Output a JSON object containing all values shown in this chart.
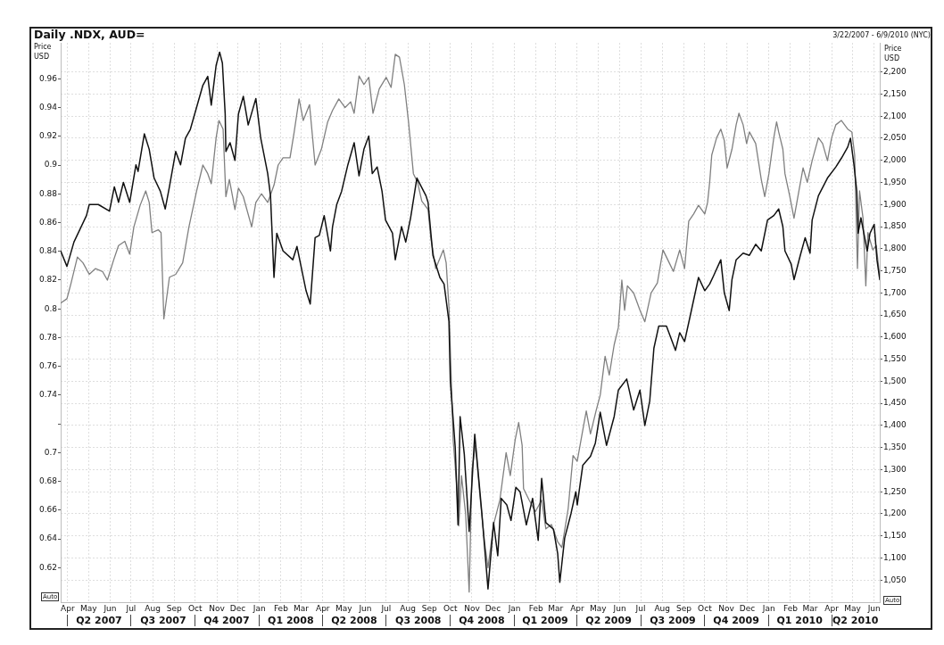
{
  "chart_data": {
    "type": "line",
    "title": "Daily .NDX, AUD=",
    "subtitle": "3/22/2007 - 6/9/2010 (NYC)",
    "ylabel": "Price USD",
    "y2label": "Price USD",
    "annotations": [
      "Auto",
      "Auto"
    ],
    "xlim": [
      "2007-03-22",
      "2010-06-09"
    ],
    "xticks": [
      {
        "value": "2007-04",
        "label": "Apr"
      },
      {
        "value": "2007-05",
        "label": "May"
      },
      {
        "value": "2007-06",
        "label": "Jun"
      },
      {
        "value": "2007-07",
        "label": "Jul"
      },
      {
        "value": "2007-08",
        "label": "Aug"
      },
      {
        "value": "2007-09",
        "label": "Sep"
      },
      {
        "value": "2007-10",
        "label": "Oct"
      },
      {
        "value": "2007-11",
        "label": "Nov"
      },
      {
        "value": "2007-12",
        "label": "Dec"
      },
      {
        "value": "2008-01",
        "label": "Jan"
      },
      {
        "value": "2008-02",
        "label": "Feb"
      },
      {
        "value": "2008-03",
        "label": "Mar"
      },
      {
        "value": "2008-04",
        "label": "Apr"
      },
      {
        "value": "2008-05",
        "label": "May"
      },
      {
        "value": "2008-06",
        "label": "Jun"
      },
      {
        "value": "2008-07",
        "label": "Jul"
      },
      {
        "value": "2008-08",
        "label": "Aug"
      },
      {
        "value": "2008-09",
        "label": "Sep"
      },
      {
        "value": "2008-10",
        "label": "Oct"
      },
      {
        "value": "2008-11",
        "label": "Nov"
      },
      {
        "value": "2008-12",
        "label": "Dec"
      },
      {
        "value": "2009-01",
        "label": "Jan"
      },
      {
        "value": "2009-02",
        "label": "Feb"
      },
      {
        "value": "2009-03",
        "label": "Mar"
      },
      {
        "value": "2009-04",
        "label": "Apr"
      },
      {
        "value": "2009-05",
        "label": "May"
      },
      {
        "value": "2009-06",
        "label": "Jun"
      },
      {
        "value": "2009-07",
        "label": "Jul"
      },
      {
        "value": "2009-08",
        "label": "Aug"
      },
      {
        "value": "2009-09",
        "label": "Sep"
      },
      {
        "value": "2009-10",
        "label": "Oct"
      },
      {
        "value": "2009-11",
        "label": "Nov"
      },
      {
        "value": "2009-12",
        "label": "Dec"
      },
      {
        "value": "2010-01",
        "label": "Jan"
      },
      {
        "value": "2010-02",
        "label": "Feb"
      },
      {
        "value": "2010-03",
        "label": "Mar"
      },
      {
        "value": "2010-04",
        "label": "Apr"
      },
      {
        "value": "2010-05",
        "label": "May"
      },
      {
        "value": "2010-06",
        "label": "Jun"
      }
    ],
    "x2lim": [
      "2007-03-22",
      "2010-06-09"
    ],
    "x2ticks": [
      {
        "value": "2007-04",
        "label": null
      },
      {
        "value": "2007-05-16",
        "label": "Q2 2007"
      },
      {
        "value": "2007-07",
        "label": null
      },
      {
        "value": "2007-08-16",
        "label": "Q3 2007"
      },
      {
        "value": "2007-10",
        "label": null
      },
      {
        "value": "2007-11-15",
        "label": "Q4 2007"
      },
      {
        "value": "2008-01",
        "label": null
      },
      {
        "value": "2008-02-15",
        "label": "Q1 2008"
      },
      {
        "value": "2008-04",
        "label": null
      },
      {
        "value": "2008-05-16",
        "label": "Q2 2008"
      },
      {
        "value": "2008-07",
        "label": null
      },
      {
        "value": "2008-08-16",
        "label": "Q3 2008"
      },
      {
        "value": "2008-10",
        "label": null
      },
      {
        "value": "2008-11-15",
        "label": "Q4 2008"
      },
      {
        "value": "2009-01",
        "label": null
      },
      {
        "value": "2009-02-14",
        "label": "Q1 2009"
      },
      {
        "value": "2009-04",
        "label": null
      },
      {
        "value": "2009-05-16",
        "label": "Q2 2009"
      },
      {
        "value": "2009-07",
        "label": null
      },
      {
        "value": "2009-08-16",
        "label": "Q3 2009"
      },
      {
        "value": "2009-10",
        "label": null
      },
      {
        "value": "2009-11-15",
        "label": "Q4 2009"
      },
      {
        "value": "2010-01",
        "label": null
      },
      {
        "value": "2010-02-14",
        "label": "Q1 2010"
      },
      {
        "value": "2010-04",
        "label": null
      },
      {
        "value": "2010-05-05",
        "label": "Q2 2010"
      }
    ],
    "ylim": [
      0.596,
      0.985
    ],
    "yticks": [
      0.62,
      0.64,
      0.66,
      0.68,
      0.7,
      {
        "value": 0.72,
        "label": null
      },
      0.74,
      0.76,
      0.78,
      0.8,
      0.82,
      0.84,
      0.86,
      0.88,
      0.9,
      0.92,
      0.94,
      0.96
    ],
    "y2lim": [
      1000,
      2266
    ],
    "y2ticks": [
      {
        "value": 1050,
        "label": "1,050"
      },
      {
        "value": 1100,
        "label": "1,100"
      },
      {
        "value": 1150,
        "label": "1,150"
      },
      {
        "value": 1200,
        "label": "1,200"
      },
      {
        "value": 1250,
        "label": "1,250"
      },
      {
        "value": 1300,
        "label": "1,300"
      },
      {
        "value": 1350,
        "label": "1,350"
      },
      {
        "value": 1400,
        "label": "1,400"
      },
      {
        "value": 1450,
        "label": "1,450"
      },
      {
        "value": 1500,
        "label": "1,500"
      },
      {
        "value": 1550,
        "label": "1,550"
      },
      {
        "value": 1600,
        "label": "1,600"
      },
      {
        "value": 1650,
        "label": "1,650"
      },
      {
        "value": 1700,
        "label": "1,700"
      },
      {
        "value": 1750,
        "label": "1,750"
      },
      {
        "value": 1800,
        "label": "1,800"
      },
      {
        "value": 1850,
        "label": "1,850"
      },
      {
        "value": 1900,
        "label": "1,900"
      },
      {
        "value": 1950,
        "label": "1,950"
      },
      {
        "value": 2000,
        "label": "2,000"
      },
      {
        "value": 2050,
        "label": "2,050"
      },
      {
        "value": 2100,
        "label": "2,100"
      },
      {
        "value": 2150,
        "label": "2,150"
      },
      {
        "value": 2200,
        "label": "2,200"
      }
    ],
    "grid": true,
    "marker": "none",
    "line_style": "solid",
    "series": [
      {
        "color": "#111111",
        "axis": "y2",
        "x": [
          "2007-03-22",
          "2007-03-31",
          "2007-04-10",
          "2007-04-28",
          "2007-05-02",
          "2007-05-15",
          "2007-05-31",
          "2007-06-07",
          "2007-06-13",
          "2007-06-20",
          "2007-06-29",
          "2007-07-08",
          "2007-07-11",
          "2007-07-20",
          "2007-07-27",
          "2007-08-03",
          "2007-08-12",
          "2007-08-19",
          "2007-08-25",
          "2007-09-03",
          "2007-09-10",
          "2007-09-17",
          "2007-09-24",
          "2007-10-03",
          "2007-10-12",
          "2007-10-19",
          "2007-10-24",
          "2007-10-31",
          "2007-11-05",
          "2007-11-09",
          "2007-11-13",
          "2007-11-14",
          "2007-11-20",
          "2007-11-27",
          "2007-12-02",
          "2007-12-09",
          "2007-12-16",
          "2007-12-27",
          "2008-01-03",
          "2008-01-13",
          "2008-01-17",
          "2008-01-22",
          "2008-01-26",
          "2008-02-04",
          "2008-02-18",
          "2008-02-24",
          "2008-03-08",
          "2008-03-14",
          "2008-03-21",
          "2008-03-27",
          "2008-04-03",
          "2008-04-12",
          "2008-04-15",
          "2008-04-21",
          "2008-04-28",
          "2008-05-07",
          "2008-05-16",
          "2008-05-23",
          "2008-05-30",
          "2008-06-06",
          "2008-06-11",
          "2008-06-18",
          "2008-06-25",
          "2008-06-30",
          "2008-07-10",
          "2008-07-14",
          "2008-07-23",
          "2008-07-29",
          "2008-08-05",
          "2008-08-14",
          "2008-08-27",
          "2008-08-30",
          "2008-09-06",
          "2008-09-16",
          "2008-09-22",
          "2008-09-29",
          "2008-10-01",
          "2008-10-08",
          "2008-10-12",
          "2008-10-15",
          "2008-10-21",
          "2008-10-28",
          "2008-11-05",
          "2008-11-15",
          "2008-11-24",
          "2008-12-02",
          "2008-12-08",
          "2008-12-13",
          "2008-12-21",
          "2008-12-27",
          "2009-01-03",
          "2009-01-09",
          "2009-01-18",
          "2009-01-27",
          "2009-02-04",
          "2009-02-09",
          "2009-02-15",
          "2009-02-26",
          "2009-03-04",
          "2009-03-07",
          "2009-03-14",
          "2009-03-23",
          "2009-03-30",
          "2009-04-01",
          "2009-04-09",
          "2009-04-20",
          "2009-04-27",
          "2009-05-04",
          "2009-05-13",
          "2009-05-24",
          "2009-05-30",
          "2009-06-11",
          "2009-06-21",
          "2009-06-30",
          "2009-07-07",
          "2009-07-14",
          "2009-07-20",
          "2009-07-27",
          "2009-08-07",
          "2009-08-20",
          "2009-08-26",
          "2009-09-02",
          "2009-09-09",
          "2009-09-22",
          "2009-10-01",
          "2009-10-08",
          "2009-10-14",
          "2009-10-24",
          "2009-10-29",
          "2009-11-05",
          "2009-11-09",
          "2009-11-15",
          "2009-11-25",
          "2009-12-04",
          "2009-12-13",
          "2009-12-21",
          "2009-12-30",
          "2010-01-08",
          "2010-01-15",
          "2010-01-21",
          "2010-01-24",
          "2010-02-02",
          "2010-02-06",
          "2010-02-15",
          "2010-02-22",
          "2010-03-01",
          "2010-03-04",
          "2010-03-13",
          "2010-03-26",
          "2010-04-07",
          "2010-04-15",
          "2010-04-24",
          "2010-04-28",
          "2010-05-03",
          "2010-05-07",
          "2010-05-09",
          "2010-05-13",
          "2010-05-22",
          "2010-05-26",
          "2010-06-01",
          "2010-06-05",
          "2010-06-09"
        ],
        "values": [
          1795,
          1760,
          1815,
          1875,
          1900,
          1900,
          1885,
          1940,
          1905,
          1950,
          1905,
          1990,
          1975,
          2060,
          2025,
          1960,
          1930,
          1890,
          1940,
          2020,
          1990,
          2050,
          2070,
          2120,
          2170,
          2190,
          2125,
          2215,
          2245,
          2220,
          2105,
          2020,
          2040,
          2000,
          2105,
          2145,
          2080,
          2140,
          2050,
          1970,
          1920,
          1735,
          1835,
          1795,
          1775,
          1805,
          1705,
          1675,
          1825,
          1830,
          1875,
          1795,
          1850,
          1900,
          1930,
          1990,
          2040,
          1965,
          2025,
          2055,
          1970,
          1985,
          1930,
          1865,
          1835,
          1775,
          1850,
          1815,
          1870,
          1960,
          1920,
          1905,
          1785,
          1735,
          1720,
          1635,
          1500,
          1350,
          1175,
          1420,
          1335,
          1160,
          1380,
          1205,
          1030,
          1180,
          1105,
          1235,
          1220,
          1185,
          1260,
          1250,
          1175,
          1235,
          1140,
          1280,
          1180,
          1165,
          1110,
          1045,
          1145,
          1200,
          1250,
          1220,
          1310,
          1330,
          1360,
          1430,
          1355,
          1420,
          1480,
          1505,
          1435,
          1480,
          1400,
          1455,
          1575,
          1625,
          1625,
          1570,
          1610,
          1590,
          1640,
          1735,
          1705,
          1720,
          1740,
          1775,
          1700,
          1660,
          1730,
          1775,
          1790,
          1785,
          1810,
          1795,
          1865,
          1875,
          1890,
          1850,
          1795,
          1765,
          1730,
          1785,
          1825,
          1790,
          1865,
          1920,
          1960,
          1985,
          2005,
          2030,
          2050,
          1990,
          1930,
          1835,
          1870,
          1795,
          1835,
          1855,
          1775,
          1730
        ]
      },
      {
        "color": "#808080",
        "x": [
          "2007-03-22",
          "2007-03-31",
          "2007-04-06",
          "2007-04-15",
          "2007-04-23",
          "2007-05-02",
          "2007-05-11",
          "2007-05-21",
          "2007-05-28",
          "2007-06-06",
          "2007-06-13",
          "2007-06-22",
          "2007-06-29",
          "2007-07-05",
          "2007-07-14",
          "2007-07-22",
          "2007-07-27",
          "2007-07-31",
          "2007-08-09",
          "2007-08-13",
          "2007-08-17",
          "2007-08-25",
          "2007-09-03",
          "2007-09-13",
          "2007-09-22",
          "2007-10-03",
          "2007-10-12",
          "2007-10-19",
          "2007-10-24",
          "2007-10-31",
          "2007-11-04",
          "2007-11-10",
          "2007-11-14",
          "2007-11-19",
          "2007-11-27",
          "2007-12-02",
          "2007-12-09",
          "2007-12-21",
          "2007-12-27",
          "2008-01-04",
          "2008-01-13",
          "2008-01-22",
          "2008-01-28",
          "2008-02-04",
          "2008-02-14",
          "2008-02-20",
          "2008-02-27",
          "2008-03-04",
          "2008-03-13",
          "2008-03-21",
          "2008-03-30",
          "2008-04-08",
          "2008-04-15",
          "2008-04-24",
          "2008-05-03",
          "2008-05-11",
          "2008-05-16",
          "2008-05-23",
          "2008-05-30",
          "2008-06-06",
          "2008-06-12",
          "2008-06-21",
          "2008-07-01",
          "2008-07-08",
          "2008-07-14",
          "2008-07-20",
          "2008-07-27",
          "2008-08-02",
          "2008-08-09",
          "2008-08-15",
          "2008-08-21",
          "2008-08-30",
          "2008-09-03",
          "2008-09-10",
          "2008-09-21",
          "2008-09-25",
          "2008-09-29",
          "2008-10-01",
          "2008-10-05",
          "2008-10-10",
          "2008-10-13",
          "2008-10-17",
          "2008-10-23",
          "2008-10-28",
          "2008-11-01",
          "2008-11-06",
          "2008-11-13",
          "2008-11-19",
          "2008-11-24",
          "2008-12-02",
          "2008-12-11",
          "2008-12-20",
          "2008-12-26",
          "2009-01-02",
          "2009-01-07",
          "2009-01-12",
          "2009-01-14",
          "2009-01-22",
          "2009-01-31",
          "2009-02-09",
          "2009-02-15",
          "2009-02-23",
          "2009-03-04",
          "2009-03-10",
          "2009-03-19",
          "2009-03-26",
          "2009-04-01",
          "2009-04-08",
          "2009-04-14",
          "2009-04-20",
          "2009-04-28",
          "2009-05-04",
          "2009-05-11",
          "2009-05-17",
          "2009-05-24",
          "2009-05-30",
          "2009-06-04",
          "2009-06-08",
          "2009-06-12",
          "2009-06-21",
          "2009-06-30",
          "2009-07-07",
          "2009-07-16",
          "2009-07-25",
          "2009-08-02",
          "2009-08-11",
          "2009-08-17",
          "2009-08-26",
          "2009-09-02",
          "2009-09-08",
          "2009-09-15",
          "2009-09-22",
          "2009-10-01",
          "2009-10-05",
          "2009-10-08",
          "2009-10-11",
          "2009-10-18",
          "2009-10-24",
          "2009-10-29",
          "2009-11-02",
          "2009-11-09",
          "2009-11-15",
          "2009-11-19",
          "2009-11-25",
          "2009-11-30",
          "2009-12-04",
          "2009-12-13",
          "2009-12-21",
          "2009-12-26",
          "2010-01-01",
          "2010-01-08",
          "2010-01-12",
          "2010-01-15",
          "2010-01-21",
          "2010-01-24",
          "2010-01-31",
          "2010-02-06",
          "2010-02-13",
          "2010-02-19",
          "2010-02-25",
          "2010-03-04",
          "2010-03-13",
          "2010-03-19",
          "2010-03-26",
          "2010-04-01",
          "2010-04-07",
          "2010-04-15",
          "2010-04-24",
          "2010-04-30",
          "2010-05-04",
          "2010-05-08",
          "2010-05-11",
          "2010-05-16",
          "2010-05-20",
          "2010-05-23",
          "2010-05-30",
          "2010-06-04",
          "2010-06-09"
        ],
        "values": [
          0.804,
          0.807,
          0.818,
          0.836,
          0.832,
          0.824,
          0.828,
          0.826,
          0.82,
          0.834,
          0.844,
          0.847,
          0.838,
          0.857,
          0.872,
          0.882,
          0.874,
          0.853,
          0.855,
          0.853,
          0.793,
          0.822,
          0.824,
          0.832,
          0.857,
          0.882,
          0.9,
          0.894,
          0.887,
          0.919,
          0.931,
          0.925,
          0.878,
          0.89,
          0.869,
          0.884,
          0.878,
          0.857,
          0.874,
          0.88,
          0.874,
          0.886,
          0.9,
          0.905,
          0.905,
          0.923,
          0.946,
          0.931,
          0.942,
          0.9,
          0.911,
          0.93,
          0.938,
          0.946,
          0.94,
          0.944,
          0.936,
          0.962,
          0.956,
          0.961,
          0.936,
          0.953,
          0.961,
          0.954,
          0.977,
          0.975,
          0.956,
          0.93,
          0.894,
          0.888,
          0.875,
          0.869,
          0.849,
          0.828,
          0.841,
          0.832,
          0.801,
          0.771,
          0.709,
          0.678,
          0.649,
          0.684,
          0.657,
          0.603,
          0.688,
          0.705,
          0.667,
          0.638,
          0.62,
          0.65,
          0.667,
          0.7,
          0.684,
          0.709,
          0.721,
          0.705,
          0.675,
          0.667,
          0.659,
          0.667,
          0.647,
          0.65,
          0.638,
          0.634,
          0.661,
          0.698,
          0.694,
          0.713,
          0.729,
          0.713,
          0.729,
          0.74,
          0.767,
          0.754,
          0.775,
          0.787,
          0.82,
          0.799,
          0.816,
          0.811,
          0.799,
          0.791,
          0.811,
          0.818,
          0.841,
          0.832,
          0.826,
          0.841,
          0.828,
          0.861,
          0.866,
          0.872,
          0.866,
          0.874,
          0.888,
          0.907,
          0.919,
          0.925,
          0.917,
          0.898,
          0.911,
          0.928,
          0.936,
          0.928,
          0.915,
          0.923,
          0.915,
          0.89,
          0.878,
          0.894,
          0.919,
          0.93,
          0.923,
          0.911,
          0.894,
          0.878,
          0.863,
          0.882,
          0.898,
          0.888,
          0.903,
          0.919,
          0.915,
          0.903,
          0.919,
          0.928,
          0.931,
          0.925,
          0.923,
          0.907,
          0.828,
          0.882,
          0.863,
          0.816,
          0.853,
          0.841,
          0.844,
          0.822
        ]
      }
    ]
  }
}
